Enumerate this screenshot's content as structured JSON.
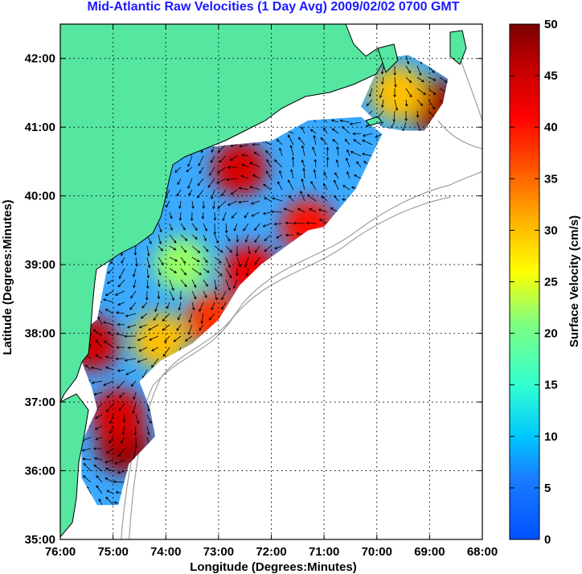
{
  "chart_data": {
    "type": "heatmap",
    "title": "Mid-Atlantic Raw Velocities (1 Day Avg) 2009/02/02 0700 GMT",
    "xlabel": "Longitude (Degrees:Minutes)",
    "ylabel": "Latitude (Degrees:Minutes)",
    "colorbar_label": "Surface Velocity (cm/s)",
    "xlim": [
      -76,
      -68
    ],
    "ylim": [
      35,
      42.5
    ],
    "x_ticks": [
      {
        "value": -76,
        "label": "76:00"
      },
      {
        "value": -75,
        "label": "75:00"
      },
      {
        "value": -74,
        "label": "74:00"
      },
      {
        "value": -73,
        "label": "73:00"
      },
      {
        "value": -72,
        "label": "72:00"
      },
      {
        "value": -71,
        "label": "71:00"
      },
      {
        "value": -70,
        "label": "70:00"
      },
      {
        "value": -69,
        "label": "69:00"
      },
      {
        "value": -68,
        "label": "68:00"
      }
    ],
    "y_ticks": [
      {
        "value": 35,
        "label": "35:00"
      },
      {
        "value": 36,
        "label": "36:00"
      },
      {
        "value": 37,
        "label": "37:00"
      },
      {
        "value": 38,
        "label": "38:00"
      },
      {
        "value": 39,
        "label": "39:00"
      },
      {
        "value": 40,
        "label": "40:00"
      },
      {
        "value": 41,
        "label": "41:00"
      },
      {
        "value": 42,
        "label": "42:00"
      }
    ],
    "colorbar": {
      "range": [
        0,
        50
      ],
      "ticks": [
        0,
        5,
        10,
        15,
        20,
        25,
        30,
        35,
        40,
        45,
        50
      ]
    },
    "grid": true,
    "colors": {
      "land": "#55e6a0",
      "title": "#1a1aff",
      "bathymetry": "#a0a0a0"
    },
    "coverage_polygon": [
      [
        -74.7,
        40.6
      ],
      [
        -72.0,
        40.8
      ],
      [
        -71.3,
        41.1
      ],
      [
        -70.3,
        41.15
      ],
      [
        -69.9,
        40.9
      ],
      [
        -70.4,
        40.1
      ],
      [
        -71.0,
        39.55
      ],
      [
        -71.3,
        39.5
      ],
      [
        -72.2,
        39.0
      ],
      [
        -72.6,
        38.7
      ],
      [
        -73.0,
        38.2
      ],
      [
        -73.5,
        37.85
      ],
      [
        -74.1,
        37.6
      ],
      [
        -74.5,
        37.3
      ],
      [
        -74.3,
        36.9
      ],
      [
        -74.2,
        36.5
      ],
      [
        -74.7,
        36.1
      ],
      [
        -74.9,
        35.5
      ],
      [
        -75.3,
        35.5
      ],
      [
        -75.6,
        35.9
      ],
      [
        -75.6,
        36.4
      ],
      [
        -75.3,
        36.9
      ],
      [
        -75.4,
        37.2
      ],
      [
        -75.6,
        37.6
      ],
      [
        -75.8,
        37.9
      ],
      [
        -75.3,
        38.2
      ],
      [
        -75.2,
        38.6
      ],
      [
        -75.1,
        39.0
      ],
      [
        -74.9,
        39.4
      ],
      [
        -74.6,
        39.8
      ],
      [
        -74.2,
        40.1
      ],
      [
        -74.0,
        40.3
      ]
    ],
    "coverage_polygon_2": [
      [
        -69.9,
        42.0
      ],
      [
        -69.4,
        42.05
      ],
      [
        -69.05,
        41.9
      ],
      [
        -68.65,
        41.7
      ],
      [
        -68.75,
        41.35
      ],
      [
        -69.1,
        40.95
      ],
      [
        -69.5,
        40.95
      ],
      [
        -69.9,
        41.0
      ],
      [
        -70.3,
        41.3
      ]
    ],
    "velocity_hotspots": [
      {
        "lon": -75.4,
        "lat": 37.85,
        "speed": 45
      },
      {
        "lon": -74.8,
        "lat": 36.35,
        "speed": 48
      },
      {
        "lon": -74.9,
        "lat": 36.8,
        "speed": 44
      },
      {
        "lon": -73.1,
        "lat": 38.2,
        "speed": 38
      },
      {
        "lon": -72.4,
        "lat": 38.9,
        "speed": 42
      },
      {
        "lon": -72.6,
        "lat": 40.4,
        "speed": 44
      },
      {
        "lon": -71.3,
        "lat": 39.55,
        "speed": 40
      },
      {
        "lon": -68.9,
        "lat": 41.3,
        "speed": 48
      },
      {
        "lon": -69.6,
        "lat": 41.5,
        "speed": 30
      },
      {
        "lon": -73.7,
        "lat": 39.0,
        "speed": 22
      },
      {
        "lon": -74.1,
        "lat": 37.9,
        "speed": 30
      }
    ],
    "background_speed": 8
  }
}
